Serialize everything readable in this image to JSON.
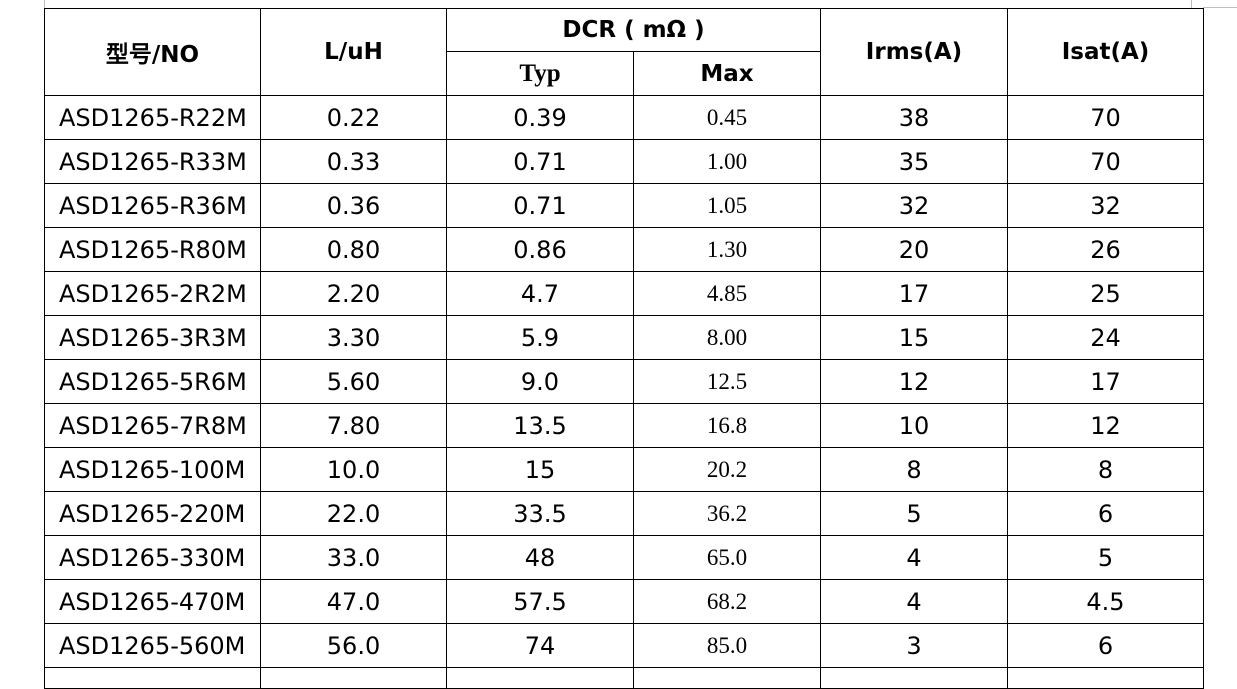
{
  "headers": {
    "model": "型号/NO",
    "inductance": "L/uH",
    "dcr": "DCR ( mΩ )",
    "typ": "Typ",
    "max": "Max",
    "irms": "Irms(A)",
    "isat": "Isat(A)"
  },
  "rows": [
    {
      "model": "ASD1265-R22M",
      "l": "0.22",
      "typ": "0.39",
      "max": "0.45",
      "irms": "38",
      "isat": "70"
    },
    {
      "model": "ASD1265-R33M",
      "l": "0.33",
      "typ": "0.71",
      "max": "1.00",
      "irms": "35",
      "isat": "70"
    },
    {
      "model": "ASD1265-R36M",
      "l": "0.36",
      "typ": "0.71",
      "max": "1.05",
      "irms": "32",
      "isat": "32"
    },
    {
      "model": "ASD1265-R80M",
      "l": "0.80",
      "typ": "0.86",
      "max": "1.30",
      "irms": "20",
      "isat": "26"
    },
    {
      "model": "ASD1265-2R2M",
      "l": "2.20",
      "typ": "4.7",
      "max": "4.85",
      "irms": "17",
      "isat": "25"
    },
    {
      "model": "ASD1265-3R3M",
      "l": "3.30",
      "typ": "5.9",
      "max": "8.00",
      "irms": "15",
      "isat": "24"
    },
    {
      "model": "ASD1265-5R6M",
      "l": "5.60",
      "typ": "9.0",
      "max": "12.5",
      "irms": "12",
      "isat": "17"
    },
    {
      "model": "ASD1265-7R8M",
      "l": "7.80",
      "typ": "13.5",
      "max": "16.8",
      "irms": "10",
      "isat": "12"
    },
    {
      "model": "ASD1265-100M",
      "l": "10.0",
      "typ": "15",
      "max": "20.2",
      "irms": "8",
      "isat": "8"
    },
    {
      "model": "ASD1265-220M",
      "l": "22.0",
      "typ": "33.5",
      "max": "36.2",
      "irms": "5",
      "isat": "6"
    },
    {
      "model": "ASD1265-330M",
      "l": "33.0",
      "typ": "48",
      "max": "65.0",
      "irms": "4",
      "isat": "5"
    },
    {
      "model": "ASD1265-470M",
      "l": "47.0",
      "typ": "57.5",
      "max": "68.2",
      "irms": "4",
      "isat": "4.5"
    },
    {
      "model": "ASD1265-560M",
      "l": "56.0",
      "typ": "74",
      "max": "85.0",
      "irms": "3",
      "isat": "6"
    }
  ]
}
